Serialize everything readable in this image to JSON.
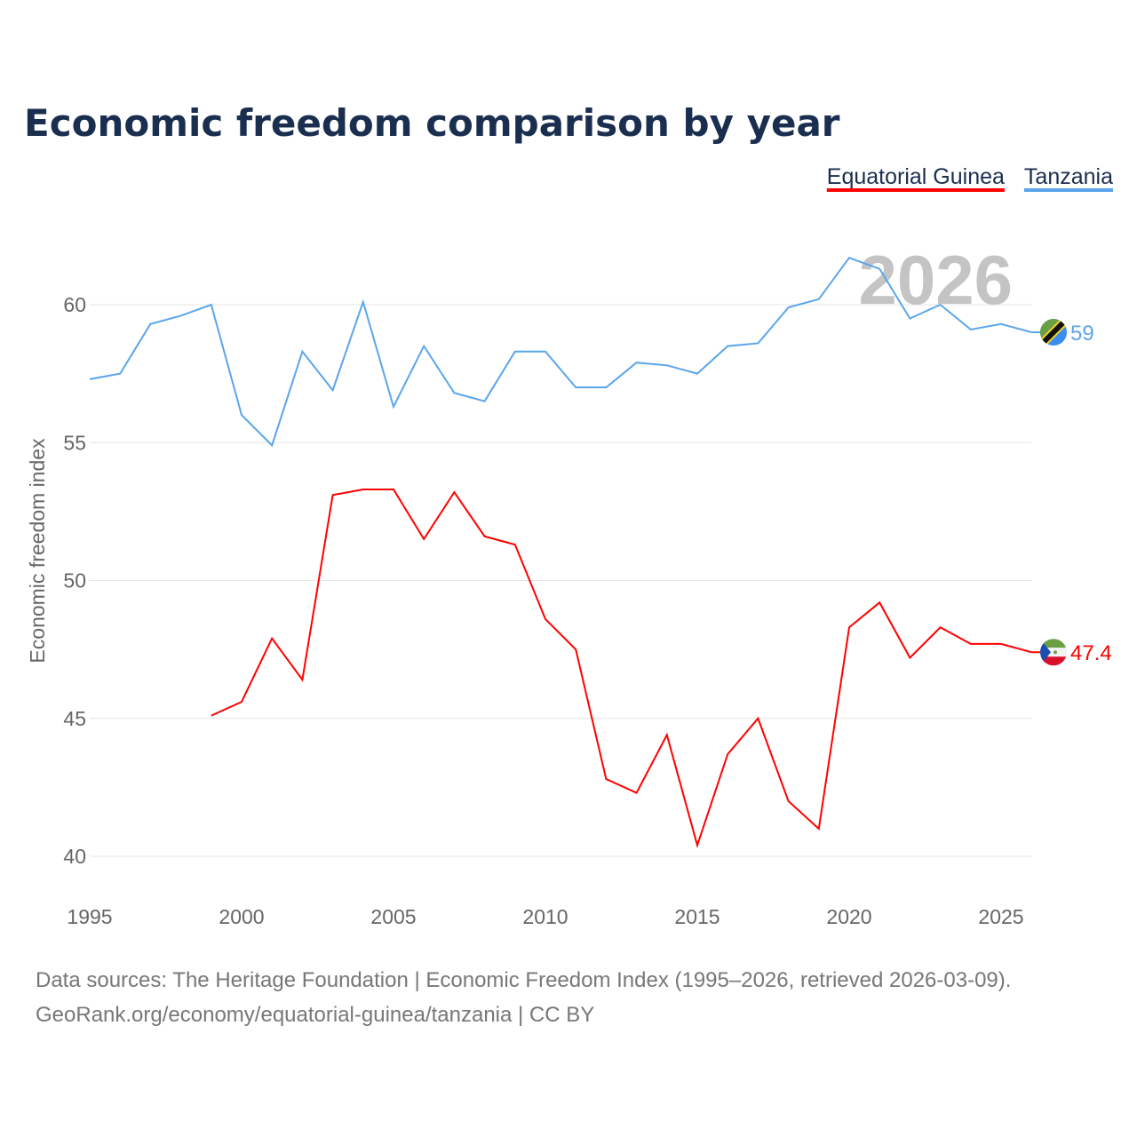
{
  "chart_data": {
    "type": "line",
    "title": "Economic freedom comparison by year",
    "xlabel": "",
    "ylabel": "Economic freedom index",
    "xlim": [
      1995,
      2026
    ],
    "ylim": [
      40,
      62
    ],
    "yticks": [
      40,
      45,
      50,
      55,
      60
    ],
    "xticks": [
      1995,
      2000,
      2005,
      2010,
      2015,
      2020,
      2025
    ],
    "grid": true,
    "legend_position": "top-right",
    "year_watermark": "2026",
    "series": [
      {
        "name": "Equatorial Guinea",
        "color": "#ff0000",
        "end_label": "47.4",
        "x": [
          1999,
          2000,
          2001,
          2002,
          2003,
          2004,
          2005,
          2006,
          2007,
          2008,
          2009,
          2010,
          2011,
          2012,
          2013,
          2014,
          2015,
          2016,
          2017,
          2018,
          2019,
          2020,
          2021,
          2022,
          2023,
          2024,
          2025,
          2026
        ],
        "values": [
          45.1,
          45.6,
          47.9,
          46.4,
          53.1,
          53.3,
          53.3,
          51.5,
          53.2,
          51.6,
          51.3,
          48.6,
          47.5,
          42.8,
          42.3,
          44.4,
          40.4,
          43.7,
          45.0,
          42.0,
          41.0,
          48.3,
          49.2,
          47.2,
          48.3,
          47.7,
          47.7,
          47.4
        ]
      },
      {
        "name": "Tanzania",
        "color": "#5aa5ec",
        "end_label": "59",
        "x": [
          1995,
          1996,
          1997,
          1998,
          1999,
          2000,
          2001,
          2002,
          2003,
          2004,
          2005,
          2006,
          2007,
          2008,
          2009,
          2010,
          2011,
          2012,
          2013,
          2014,
          2015,
          2016,
          2017,
          2018,
          2019,
          2020,
          2021,
          2022,
          2023,
          2024,
          2025,
          2026
        ],
        "values": [
          57.3,
          57.5,
          59.3,
          59.6,
          60.0,
          56.0,
          54.9,
          58.3,
          56.9,
          60.1,
          56.3,
          58.5,
          56.8,
          56.5,
          58.3,
          58.3,
          57.0,
          57.0,
          57.9,
          57.8,
          57.5,
          58.5,
          58.6,
          59.9,
          60.2,
          61.7,
          61.3,
          59.5,
          60.0,
          59.1,
          59.3,
          59.0
        ]
      }
    ]
  },
  "footer": {
    "line1": "Data sources: The Heritage Foundation | Economic Freedom Index (1995–2026, retrieved 2026-03-09).",
    "line2": "GeoRank.org/economy/equatorial-guinea/tanzania | CC BY"
  }
}
